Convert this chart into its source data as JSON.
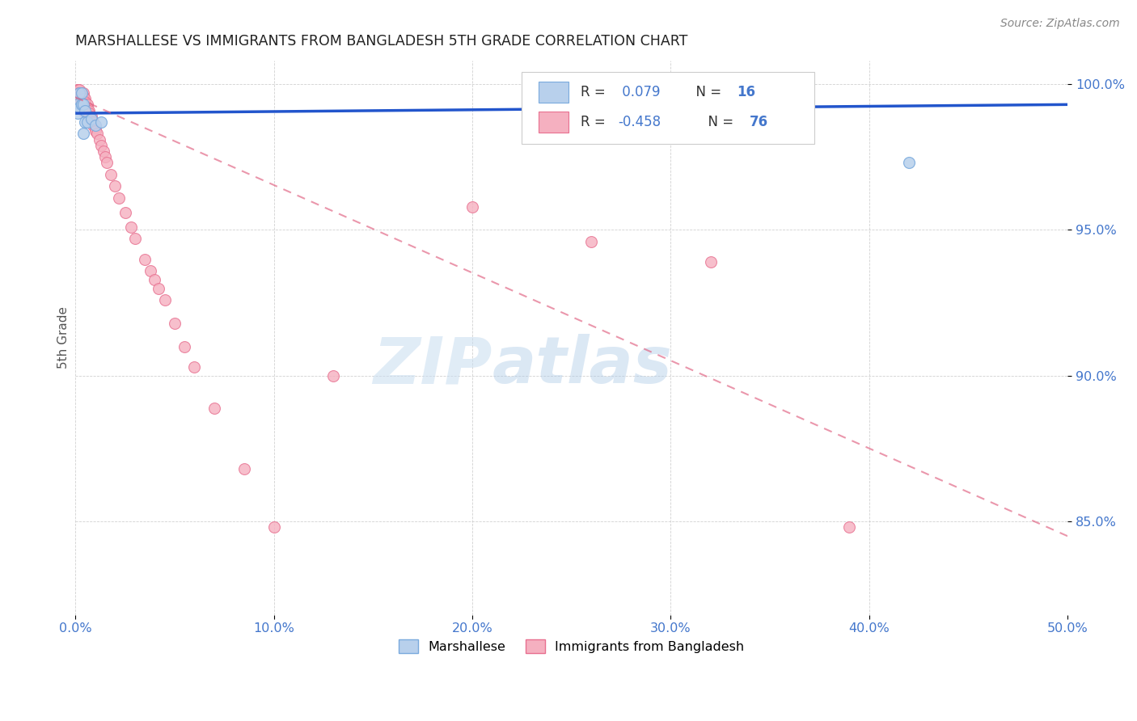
{
  "title": "MARSHALLESE VS IMMIGRANTS FROM BANGLADESH 5TH GRADE CORRELATION CHART",
  "source": "Source: ZipAtlas.com",
  "ylabel": "5th Grade",
  "xlim": [
    0.0,
    0.5
  ],
  "ylim": [
    0.818,
    1.008
  ],
  "xticks": [
    0.0,
    0.1,
    0.2,
    0.3,
    0.4,
    0.5
  ],
  "xticklabels": [
    "0.0%",
    "10.0%",
    "20.0%",
    "30.0%",
    "40.0%",
    "50.0%"
  ],
  "yticks": [
    0.85,
    0.9,
    0.95,
    1.0
  ],
  "yticklabels": [
    "85.0%",
    "90.0%",
    "95.0%",
    "100.0%"
  ],
  "legend_R1": "0.079",
  "legend_N1": "16",
  "legend_R2": "-0.458",
  "legend_N2": "76",
  "color_marshallese_fill": "#b8d0ec",
  "color_marshallese_edge": "#7aaadd",
  "color_bangladesh_fill": "#f5b0c0",
  "color_bangladesh_edge": "#e87090",
  "color_trend_blue": "#2255cc",
  "color_trend_pink": "#e06080",
  "color_tick": "#4477cc",
  "watermark_zip": "ZIP",
  "watermark_atlas": "atlas",
  "marshallese_x": [
    0.001,
    0.001,
    0.002,
    0.002,
    0.003,
    0.003,
    0.003,
    0.004,
    0.004,
    0.005,
    0.005,
    0.006,
    0.008,
    0.01,
    0.013,
    0.42
  ],
  "marshallese_y": [
    0.993,
    0.99,
    0.997,
    0.992,
    0.993,
    0.997,
    0.993,
    0.993,
    0.983,
    0.987,
    0.991,
    0.987,
    0.988,
    0.986,
    0.987,
    0.973
  ],
  "bangladesh_x": [
    0.001,
    0.001,
    0.001,
    0.001,
    0.001,
    0.002,
    0.002,
    0.002,
    0.002,
    0.002,
    0.002,
    0.002,
    0.003,
    0.003,
    0.003,
    0.003,
    0.003,
    0.003,
    0.003,
    0.004,
    0.004,
    0.004,
    0.004,
    0.004,
    0.004,
    0.004,
    0.004,
    0.004,
    0.004,
    0.004,
    0.005,
    0.005,
    0.005,
    0.005,
    0.005,
    0.006,
    0.006,
    0.006,
    0.006,
    0.007,
    0.007,
    0.007,
    0.008,
    0.008,
    0.009,
    0.009,
    0.01,
    0.01,
    0.011,
    0.012,
    0.013,
    0.014,
    0.015,
    0.016,
    0.018,
    0.02,
    0.022,
    0.025,
    0.028,
    0.03,
    0.035,
    0.038,
    0.04,
    0.042,
    0.045,
    0.05,
    0.055,
    0.06,
    0.07,
    0.085,
    0.1,
    0.13,
    0.2,
    0.26,
    0.32,
    0.39
  ],
  "bangladesh_y": [
    0.998,
    0.998,
    0.997,
    0.997,
    0.996,
    0.998,
    0.997,
    0.997,
    0.996,
    0.996,
    0.996,
    0.995,
    0.997,
    0.996,
    0.996,
    0.995,
    0.995,
    0.994,
    0.993,
    0.997,
    0.996,
    0.995,
    0.995,
    0.994,
    0.994,
    0.993,
    0.993,
    0.992,
    0.992,
    0.991,
    0.995,
    0.994,
    0.993,
    0.992,
    0.991,
    0.993,
    0.992,
    0.991,
    0.99,
    0.991,
    0.99,
    0.989,
    0.989,
    0.988,
    0.987,
    0.986,
    0.985,
    0.984,
    0.983,
    0.981,
    0.979,
    0.977,
    0.975,
    0.973,
    0.969,
    0.965,
    0.961,
    0.956,
    0.951,
    0.947,
    0.94,
    0.936,
    0.933,
    0.93,
    0.926,
    0.918,
    0.91,
    0.903,
    0.889,
    0.868,
    0.848,
    0.9,
    0.958,
    0.946,
    0.939,
    0.848
  ],
  "trend_blue_x0": 0.0,
  "trend_blue_x1": 0.5,
  "trend_blue_y0": 0.99,
  "trend_blue_y1": 0.993,
  "trend_pink_x0": 0.0,
  "trend_pink_x1": 0.5,
  "trend_pink_y0": 0.9955,
  "trend_pink_y1": 0.845
}
